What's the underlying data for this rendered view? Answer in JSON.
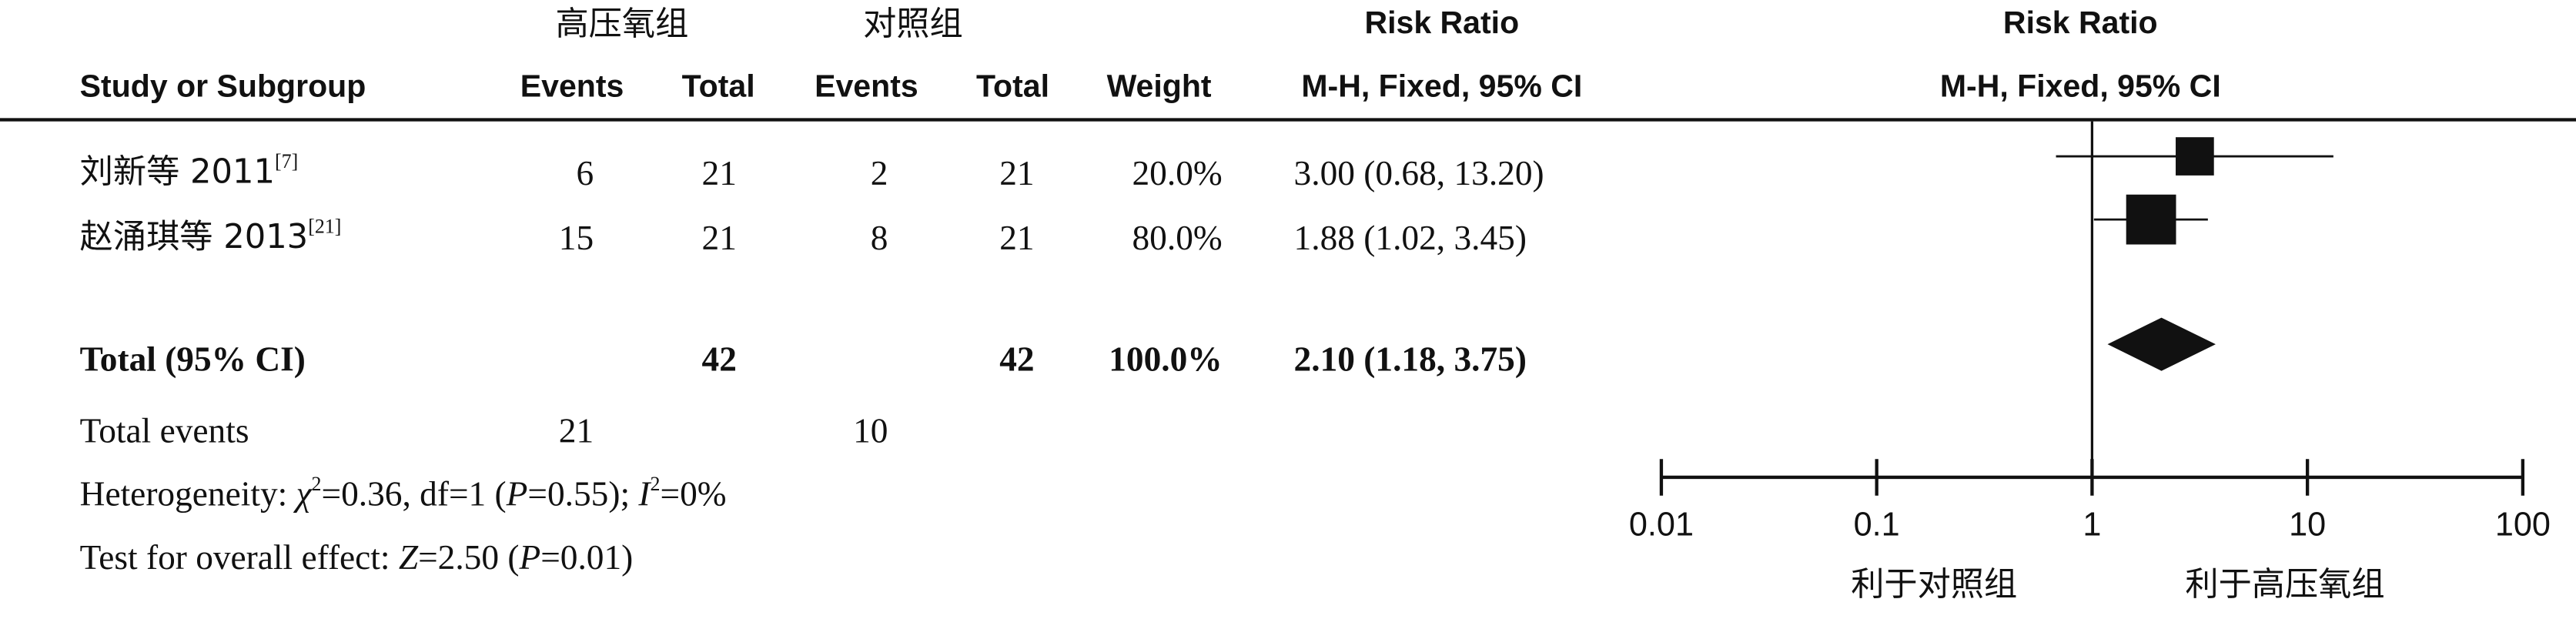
{
  "header": {
    "group_exp": "高压氧组",
    "group_ctrl": "对照组",
    "rr_text_title": "Risk Ratio",
    "rr_plot_title": "Risk Ratio",
    "study_col": "Study or Subgroup",
    "events_exp": "Events",
    "total_exp": "Total",
    "events_ctrl": "Events",
    "total_ctrl": "Total",
    "weight_col": "Weight",
    "method_text": "M-H, Fixed, 95% CI",
    "method_plot": "M-H, Fixed, 95% CI"
  },
  "studies": [
    {
      "name": "刘新等 2011",
      "ref": "[7]",
      "events_exp": "6",
      "total_exp": "21",
      "events_ctrl": "2",
      "total_ctrl": "21",
      "weight": "20.0%",
      "ci_text": "3.00 (0.68, 13.20)"
    },
    {
      "name": "赵涌琪等 2013",
      "ref": "[21]",
      "events_exp": "15",
      "total_exp": "21",
      "events_ctrl": "8",
      "total_ctrl": "21",
      "weight": "80.0%",
      "ci_text": "1.88 (1.02, 3.45)"
    }
  ],
  "total": {
    "label": "Total (95% CI)",
    "total_exp": "42",
    "total_ctrl": "42",
    "weight": "100.0%",
    "ci_text": "2.10 (1.18, 3.75)"
  },
  "total_events": {
    "label": "Total events",
    "events_exp": "21",
    "events_ctrl": "10"
  },
  "heterogeneity": {
    "prefix": "Heterogeneity: ",
    "chi": "χ",
    "chi_rest": "=0.36, df=1 (",
    "p": "P",
    "p_rest": "=0.55); ",
    "i": "I",
    "i_rest": "=0%"
  },
  "overall": {
    "prefix": "Test for overall effect: ",
    "z": "Z",
    "z_rest": "=2.50 (",
    "p": "P",
    "p_rest": "=0.01)"
  },
  "chart_data": {
    "type": "forest",
    "scale": "log",
    "xlim": [
      0.01,
      100
    ],
    "ticks": [
      "0.01",
      "0.1",
      "1",
      "10",
      "100"
    ],
    "tick_values": [
      0.01,
      0.1,
      1,
      10,
      100
    ],
    "favours_left": "利于对照组",
    "favours_right": "利于高压氧组",
    "series": [
      {
        "estimate": 3.0,
        "lower": 0.68,
        "upper": 13.2,
        "weight": 20.0
      },
      {
        "estimate": 1.88,
        "lower": 1.02,
        "upper": 3.45,
        "weight": 80.0
      }
    ],
    "pooled": {
      "estimate": 2.1,
      "lower": 1.18,
      "upper": 3.75
    }
  }
}
